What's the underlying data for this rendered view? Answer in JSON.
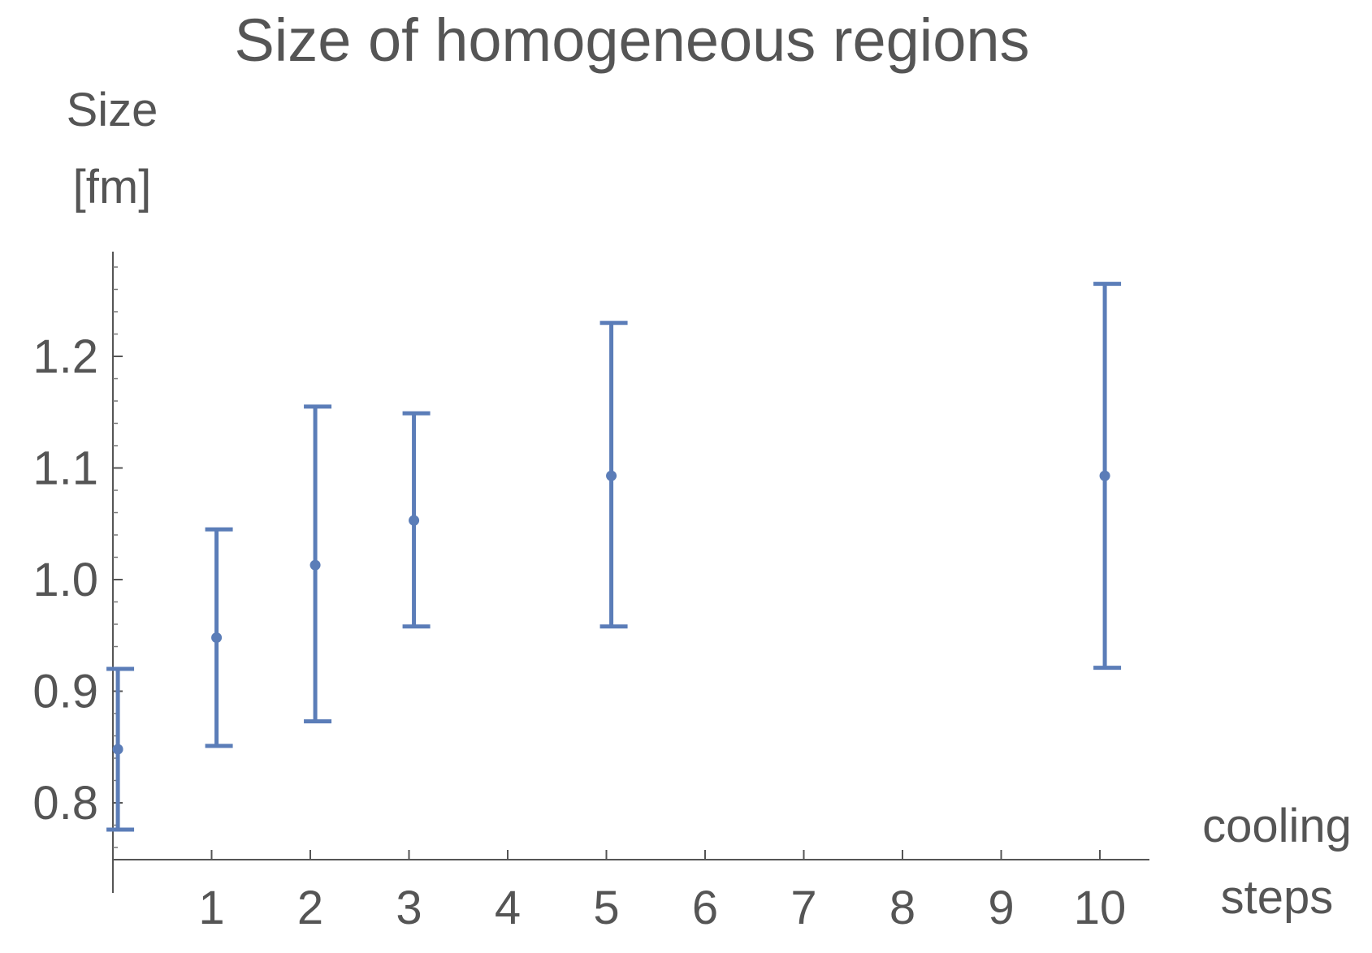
{
  "chart_data": {
    "type": "scatter",
    "title": "Size of homogeneous regions",
    "ylabel_line1": "Size",
    "ylabel_line2": "[fm]",
    "xlabel_line1": "cooling",
    "xlabel_line2": "steps",
    "xlim": [
      0,
      10.5
    ],
    "ylim": [
      0.75,
      1.28
    ],
    "xticks": [
      1,
      2,
      3,
      4,
      5,
      6,
      7,
      8,
      9,
      10
    ],
    "yticks": [
      0.8,
      0.9,
      1.0,
      1.1,
      1.2
    ],
    "ytick_labels": [
      "0.8",
      "0.9",
      "1.0",
      "1.1",
      "1.2"
    ],
    "xtick_labels": [
      "1",
      "2",
      "3",
      "4",
      "5",
      "6",
      "7",
      "8",
      "9",
      "10"
    ],
    "grid": false,
    "series": [
      {
        "color": "#5b7db8",
        "points": [
          {
            "x": 0.05,
            "y": 0.848,
            "y_low": 0.776,
            "y_high": 0.92
          },
          {
            "x": 1.05,
            "y": 0.948,
            "y_low": 0.851,
            "y_high": 1.045
          },
          {
            "x": 2.05,
            "y": 1.013,
            "y_low": 0.873,
            "y_high": 1.155
          },
          {
            "x": 3.05,
            "y": 1.053,
            "y_low": 0.958,
            "y_high": 1.149
          },
          {
            "x": 5.05,
            "y": 1.093,
            "y_low": 0.958,
            "y_high": 1.23
          },
          {
            "x": 10.05,
            "y": 1.093,
            "y_low": 0.921,
            "y_high": 1.265
          }
        ]
      }
    ]
  }
}
